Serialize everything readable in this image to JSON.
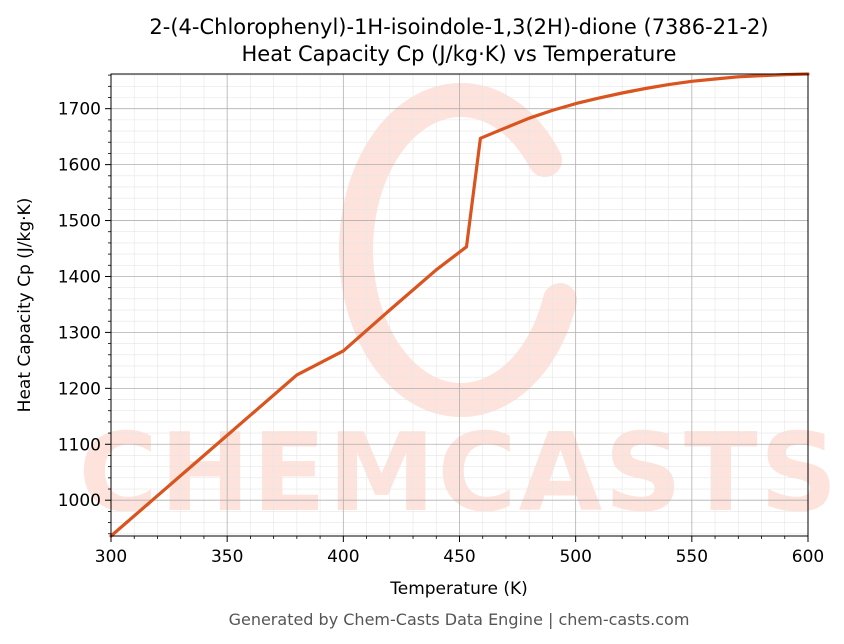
{
  "chart_data": {
    "type": "line",
    "title_line1": "2-(4-Chlorophenyl)-1H-isoindole-1,3(2H)-dione (7386-21-2)",
    "title_line2": "Heat Capacity Cp (J/kg·K) vs Temperature",
    "xlabel": "Temperature (K)",
    "ylabel": "Heat Capacity Cp (J/kg·K)",
    "xlim": [
      300,
      600
    ],
    "ylim": [
      936,
      1762
    ],
    "xticks": [
      300,
      350,
      400,
      450,
      500,
      550,
      600
    ],
    "yticks": [
      1000,
      1100,
      1200,
      1300,
      1400,
      1500,
      1600,
      1700
    ],
    "grid": true,
    "series": [
      {
        "color": "#d9541e",
        "x": [
          300,
          320,
          340,
          360,
          380,
          400,
          420,
          440,
          453,
          459,
          470,
          480,
          490,
          500,
          510,
          520,
          530,
          540,
          550,
          560,
          570,
          580,
          590,
          600
        ],
        "y": [
          936,
          1008,
          1080,
          1152,
          1224,
          1267,
          1340,
          1412,
          1453,
          1647,
          1666,
          1683,
          1697,
          1709,
          1719,
          1728,
          1736,
          1743,
          1749,
          1753,
          1757,
          1759,
          1761,
          1762
        ]
      }
    ]
  },
  "footer": "Generated by Chem-Casts Data Engine | chem-casts.com",
  "watermark": "CHEMCASTS",
  "colors": {
    "line": "#d9541e",
    "watermark": "#fde3dc",
    "grid_major": "#b0b0b0",
    "grid_minor": "#e6e6e6"
  }
}
